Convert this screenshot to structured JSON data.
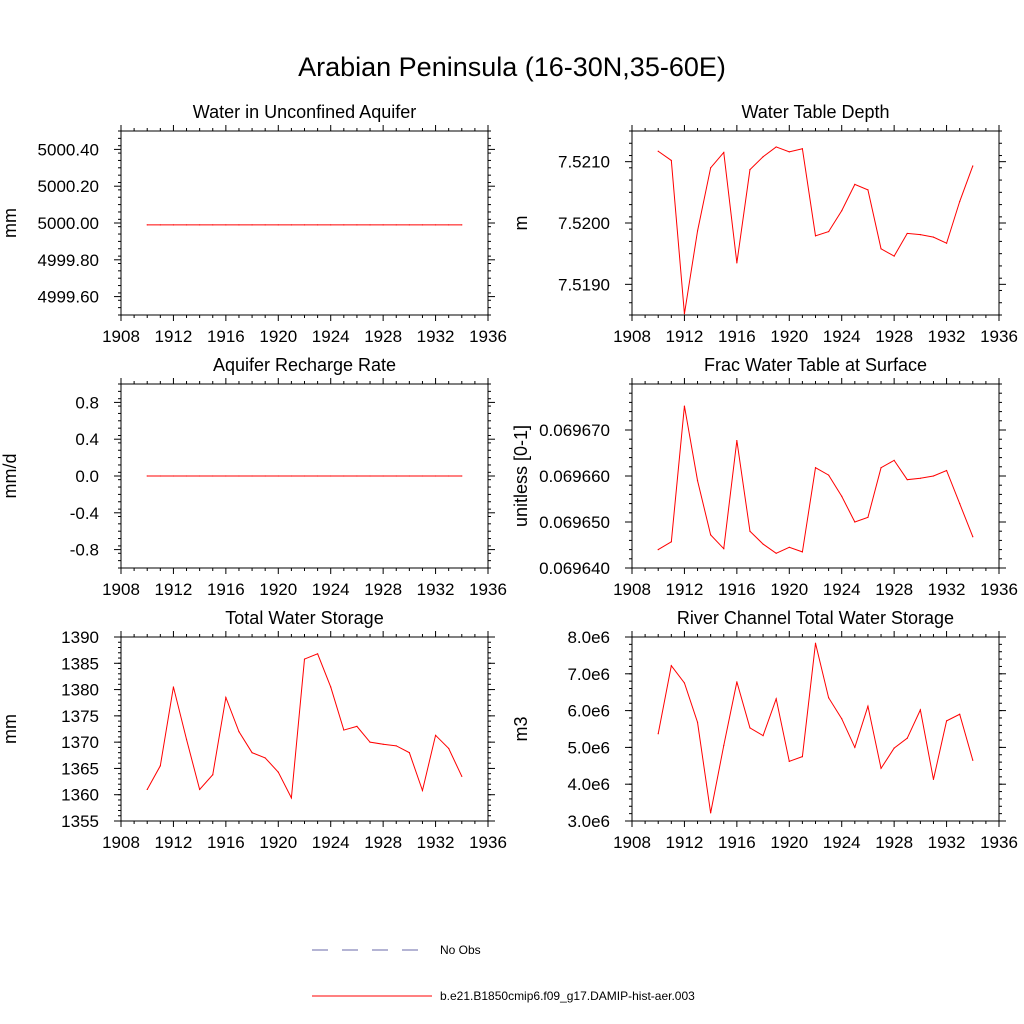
{
  "title": "Arabian Peninsula (16-30N,35-60E)",
  "colors": {
    "model": "#ff0000",
    "obs": "#6a6aa8",
    "axis": "#000000"
  },
  "legend": {
    "obs_label": "No Obs",
    "model_label": "b.e21.B1850cmip6.f09_g17.DAMIP-hist-aer.003"
  },
  "chart_data": [
    {
      "type": "line",
      "title": "Water in Unconfined Aquifer",
      "ylabel": "mm",
      "xlim": [
        1908,
        1936
      ],
      "xticks": [
        1908,
        1912,
        1916,
        1920,
        1924,
        1928,
        1932,
        1936
      ],
      "xtick_labels": [
        "1908",
        "1912",
        "1916",
        "1920",
        "1924",
        "1928",
        "1932",
        "1936"
      ],
      "ylim": [
        4999.5,
        5000.5
      ],
      "yticks": [
        4999.6,
        4999.8,
        5000.0,
        5000.2,
        5000.4
      ],
      "ytick_labels": [
        "4999.60",
        "4999.80",
        "5000.00",
        "5000.20",
        "5000.40"
      ],
      "x": [
        1910,
        1911,
        1912,
        1913,
        1914,
        1915,
        1916,
        1917,
        1918,
        1919,
        1920,
        1921,
        1922,
        1923,
        1924,
        1925,
        1926,
        1927,
        1928,
        1929,
        1930,
        1931,
        1932,
        1933,
        1934
      ],
      "values": [
        4999.99,
        4999.99,
        4999.99,
        4999.99,
        4999.99,
        4999.99,
        4999.99,
        4999.99,
        4999.99,
        4999.99,
        4999.99,
        4999.99,
        4999.99,
        4999.99,
        4999.99,
        4999.99,
        4999.99,
        4999.99,
        4999.99,
        4999.99,
        4999.99,
        4999.99,
        4999.99,
        4999.99,
        4999.99
      ]
    },
    {
      "type": "line",
      "title": "Water Table Depth",
      "ylabel": "m",
      "xlim": [
        1908,
        1936
      ],
      "xticks": [
        1908,
        1912,
        1916,
        1920,
        1924,
        1928,
        1932,
        1936
      ],
      "xtick_labels": [
        "1908",
        "1912",
        "1916",
        "1920",
        "1924",
        "1928",
        "1932",
        "1936"
      ],
      "ylim": [
        7.5185,
        7.5215
      ],
      "yticks": [
        7.519,
        7.52,
        7.521
      ],
      "ytick_labels": [
        "7.5190",
        "7.5200",
        "7.5210"
      ],
      "x": [
        1910,
        1911,
        1912,
        1913,
        1914,
        1915,
        1916,
        1917,
        1918,
        1919,
        1920,
        1921,
        1922,
        1923,
        1924,
        1925,
        1926,
        1927,
        1928,
        1929,
        1930,
        1931,
        1932,
        1933,
        1934
      ],
      "values": [
        7.52117,
        7.52102,
        7.51852,
        7.51987,
        7.5209,
        7.52115,
        7.51935,
        7.52087,
        7.52108,
        7.52124,
        7.52116,
        7.52121,
        7.51979,
        7.51986,
        7.5202,
        7.52063,
        7.52054,
        7.51958,
        7.51946,
        7.51983,
        7.51981,
        7.51977,
        7.51967,
        7.52035,
        7.52093
      ]
    },
    {
      "type": "line",
      "title": "Aquifer Recharge Rate",
      "ylabel": "mm/d",
      "xlim": [
        1908,
        1936
      ],
      "xticks": [
        1908,
        1912,
        1916,
        1920,
        1924,
        1928,
        1932,
        1936
      ],
      "xtick_labels": [
        "1908",
        "1912",
        "1916",
        "1920",
        "1924",
        "1928",
        "1932",
        "1936"
      ],
      "ylim": [
        -1.0,
        1.0
      ],
      "yticks": [
        -0.8,
        -0.4,
        0.0,
        0.4,
        0.8
      ],
      "ytick_labels": [
        "-0.8",
        "-0.4",
        "0.0",
        "0.4",
        "0.8"
      ],
      "x": [
        1910,
        1911,
        1912,
        1913,
        1914,
        1915,
        1916,
        1917,
        1918,
        1919,
        1920,
        1921,
        1922,
        1923,
        1924,
        1925,
        1926,
        1927,
        1928,
        1929,
        1930,
        1931,
        1932,
        1933,
        1934
      ],
      "values": [
        0,
        0,
        0,
        0,
        0,
        0,
        0,
        0,
        0,
        0,
        0,
        0,
        0,
        0,
        0,
        0,
        0,
        0,
        0,
        0,
        0,
        0,
        0,
        0,
        0
      ]
    },
    {
      "type": "line",
      "title": "Frac Water Table at Surface",
      "ylabel": "unitless [0-1]",
      "xlim": [
        1908,
        1936
      ],
      "xticks": [
        1908,
        1912,
        1916,
        1920,
        1924,
        1928,
        1932,
        1936
      ],
      "xtick_labels": [
        "1908",
        "1912",
        "1916",
        "1920",
        "1924",
        "1928",
        "1932",
        "1936"
      ],
      "ylim": [
        0.06964,
        0.06968
      ],
      "yticks": [
        0.06964,
        0.06965,
        0.06966,
        0.06967
      ],
      "ytick_labels": [
        "0.069640",
        "0.069650",
        "0.069660",
        "0.069670"
      ],
      "x": [
        1910,
        1911,
        1912,
        1913,
        1914,
        1915,
        1916,
        1917,
        1918,
        1919,
        1920,
        1921,
        1922,
        1923,
        1924,
        1925,
        1926,
        1927,
        1928,
        1929,
        1930,
        1931,
        1932,
        1933,
        1934
      ],
      "values": [
        0.069644,
        0.0696457,
        0.0696752,
        0.069659,
        0.0696472,
        0.0696442,
        0.0696677,
        0.069648,
        0.0696452,
        0.0696432,
        0.0696445,
        0.0696435,
        0.0696618,
        0.0696602,
        0.0696556,
        0.06965,
        0.069651,
        0.0696618,
        0.0696634,
        0.0696592,
        0.0696595,
        0.06966,
        0.0696612,
        0.069654,
        0.0696468
      ]
    },
    {
      "type": "line",
      "title": "Total Water Storage",
      "ylabel": "mm",
      "xlim": [
        1908,
        1936
      ],
      "xticks": [
        1908,
        1912,
        1916,
        1920,
        1924,
        1928,
        1932,
        1936
      ],
      "xtick_labels": [
        "1908",
        "1912",
        "1916",
        "1920",
        "1924",
        "1928",
        "1932",
        "1936"
      ],
      "ylim": [
        1355,
        1390
      ],
      "yticks": [
        1355,
        1360,
        1365,
        1370,
        1375,
        1380,
        1385,
        1390
      ],
      "ytick_labels": [
        "1355",
        "1360",
        "1365",
        "1370",
        "1375",
        "1380",
        "1385",
        "1390"
      ],
      "x": [
        1910,
        1911,
        1912,
        1913,
        1914,
        1915,
        1916,
        1917,
        1918,
        1919,
        1920,
        1921,
        1922,
        1923,
        1924,
        1925,
        1926,
        1927,
        1928,
        1929,
        1930,
        1931,
        1932,
        1933,
        1934
      ],
      "values": [
        1361.0,
        1365.5,
        1380.5,
        1370.5,
        1361.0,
        1363.8,
        1378.5,
        1372.0,
        1368.0,
        1367.0,
        1364.3,
        1359.4,
        1385.8,
        1386.8,
        1380.5,
        1372.3,
        1373.0,
        1370.0,
        1369.6,
        1369.3,
        1368.0,
        1360.8,
        1371.3,
        1368.8,
        1363.5
      ]
    },
    {
      "type": "line",
      "title": "River Channel Total Water Storage",
      "ylabel": "m3",
      "xlim": [
        1908,
        1936
      ],
      "xticks": [
        1908,
        1912,
        1916,
        1920,
        1924,
        1928,
        1932,
        1936
      ],
      "xtick_labels": [
        "1908",
        "1912",
        "1916",
        "1920",
        "1924",
        "1928",
        "1932",
        "1936"
      ],
      "ylim": [
        3000000.0,
        8000000.0
      ],
      "yticks": [
        3000000.0,
        4000000.0,
        5000000.0,
        6000000.0,
        7000000.0,
        8000000.0
      ],
      "ytick_labels": [
        "3.0e6",
        "4.0e6",
        "5.0e6",
        "6.0e6",
        "7.0e6",
        "8.0e6"
      ],
      "x": [
        1910,
        1911,
        1912,
        1913,
        1914,
        1915,
        1916,
        1917,
        1918,
        1919,
        1920,
        1921,
        1922,
        1923,
        1924,
        1925,
        1926,
        1927,
        1928,
        1929,
        1930,
        1931,
        1932,
        1933,
        1934
      ],
      "values": [
        5370000.0,
        7220000.0,
        6750000.0,
        5680000.0,
        3220000.0,
        5050000.0,
        6780000.0,
        5530000.0,
        5320000.0,
        6320000.0,
        4620000.0,
        4750000.0,
        7830000.0,
        6350000.0,
        5780000.0,
        5000000.0,
        6120000.0,
        4430000.0,
        4980000.0,
        5250000.0,
        6020000.0,
        4130000.0,
        5720000.0,
        5900000.0,
        4650000.0
      ]
    }
  ]
}
